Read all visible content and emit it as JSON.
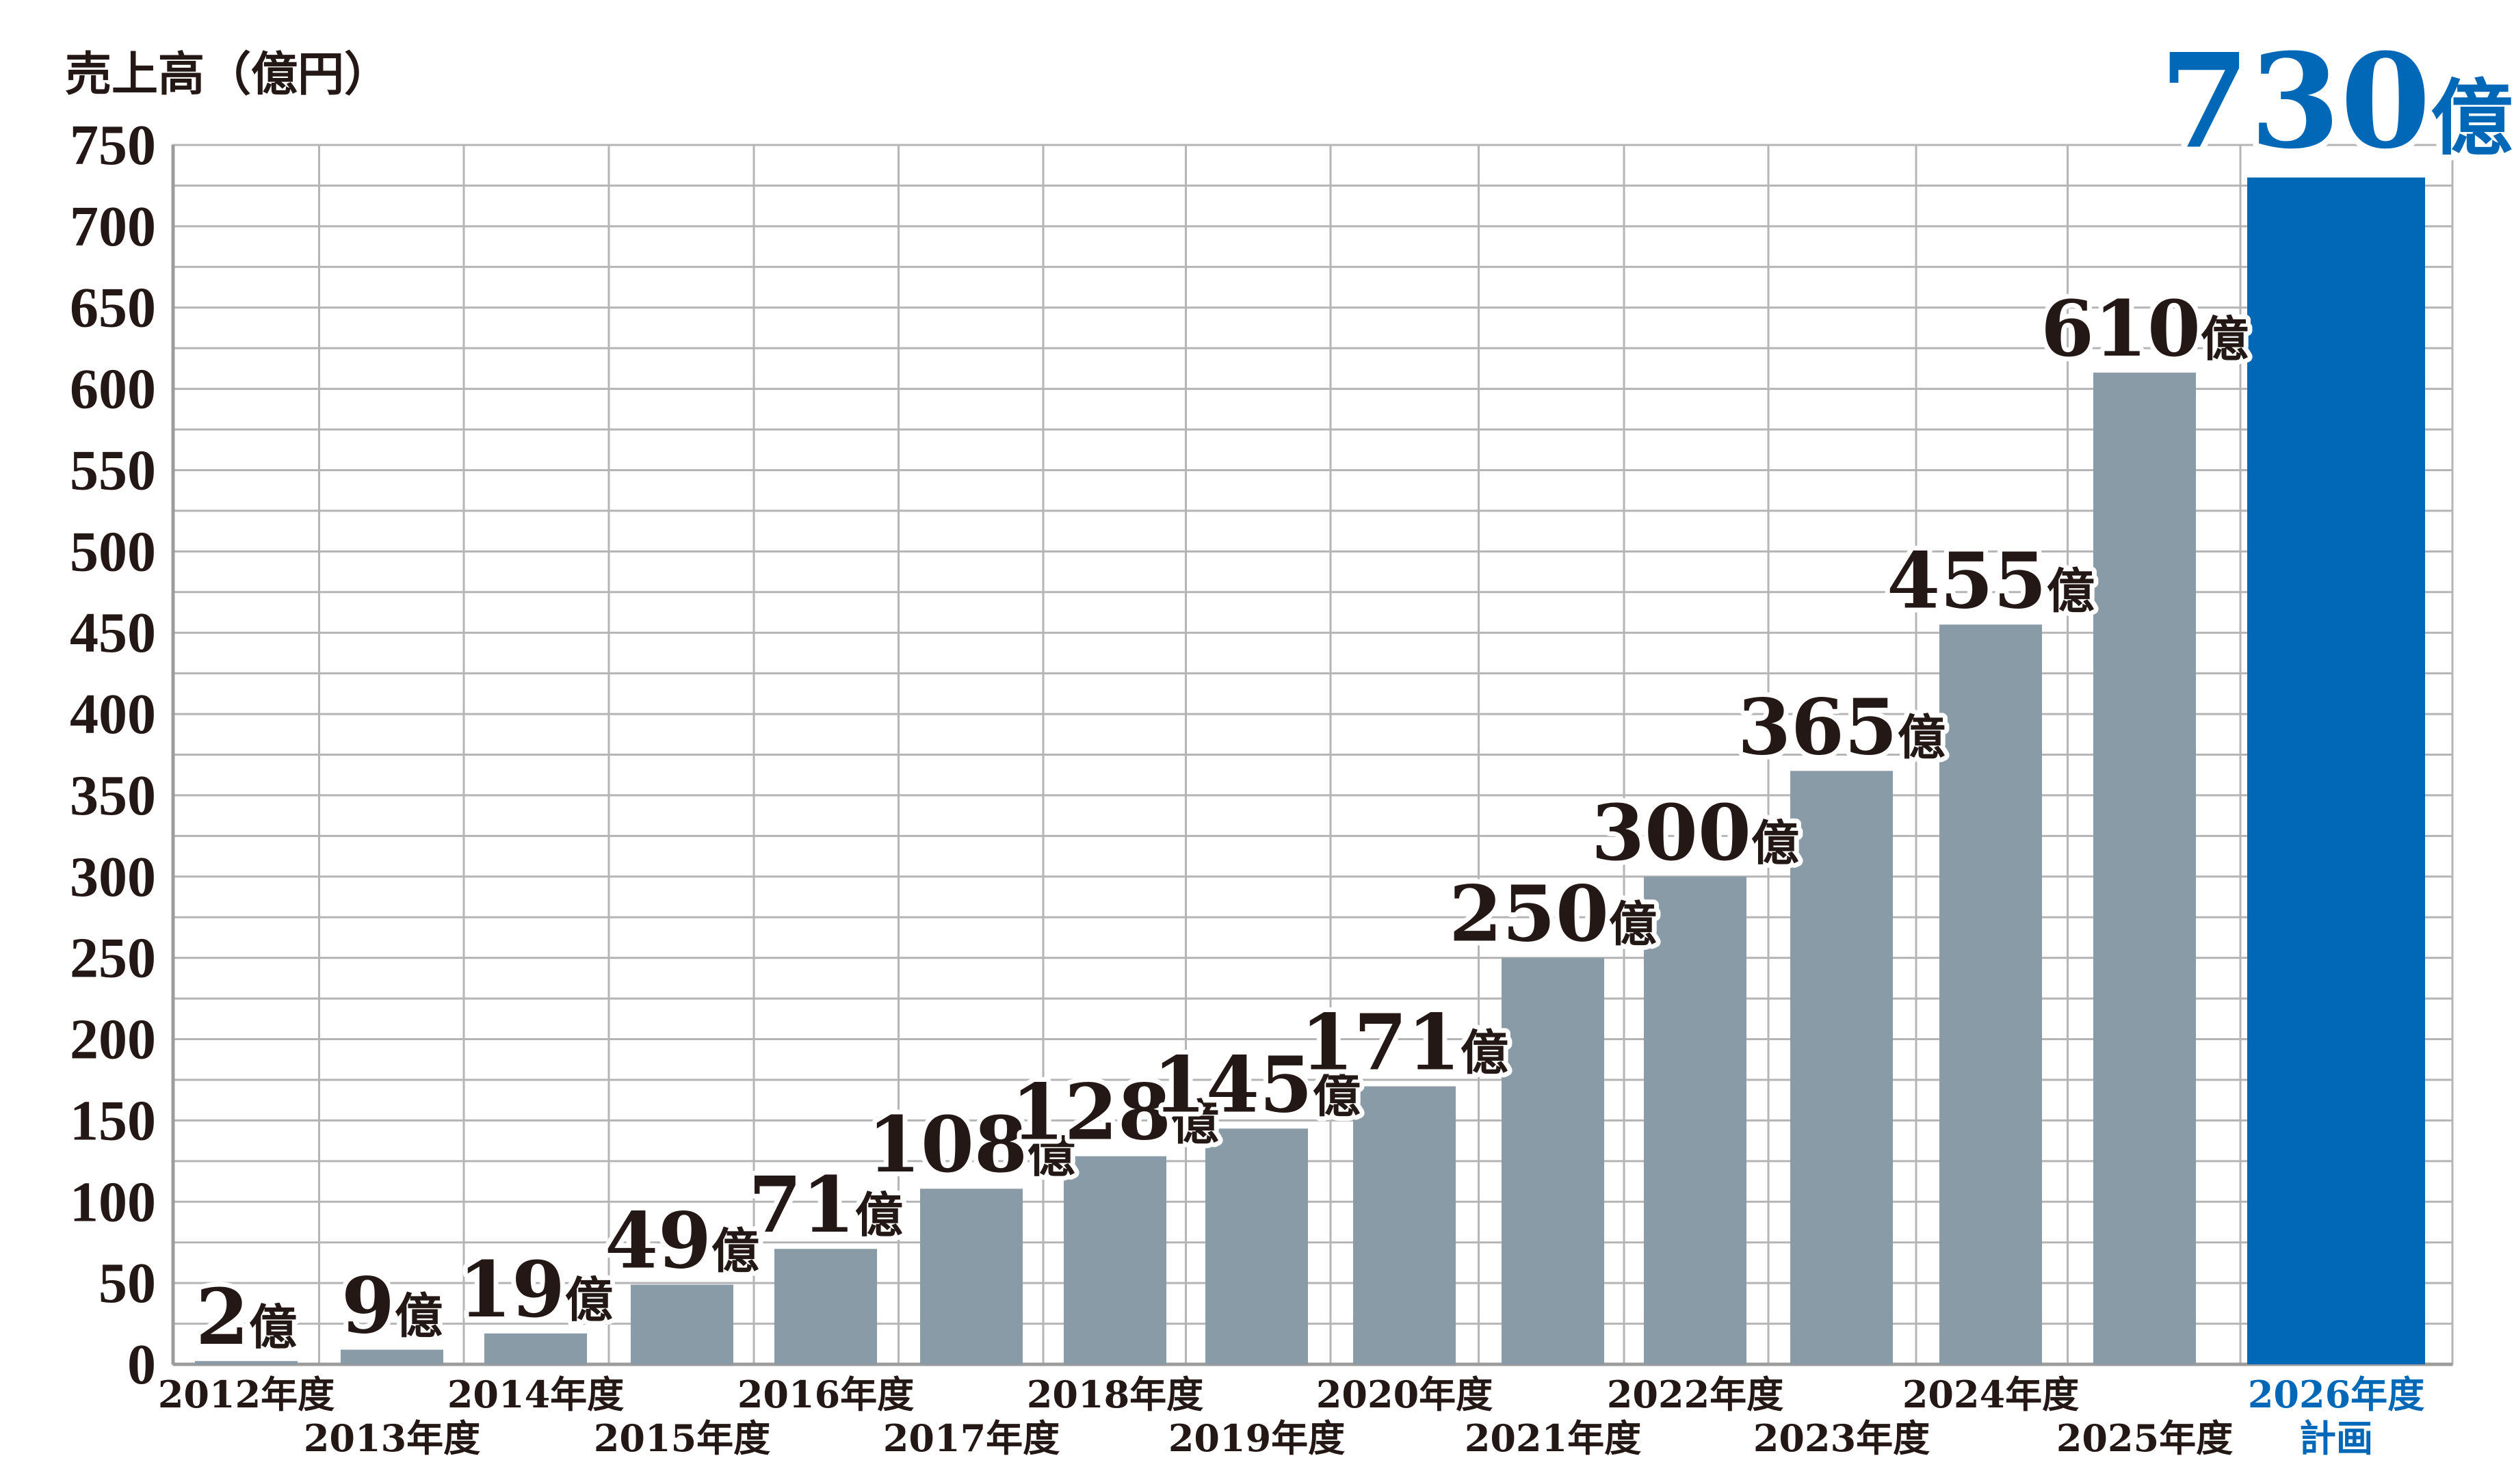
{
  "chart_data": {
    "type": "bar",
    "ylabel": "売上高（億円）",
    "ylim": [
      0,
      750
    ],
    "yticks": [
      "0",
      "50",
      "100",
      "150",
      "200",
      "250",
      "300",
      "350",
      "400",
      "450",
      "500",
      "550",
      "600",
      "650",
      "700",
      "750"
    ],
    "grid": true,
    "categories": [
      "2012年度",
      "2013年度",
      "2014年度",
      "2015年度",
      "2016年度",
      "2017年度",
      "2018年度",
      "2019年度",
      "2020年度",
      "2021年度",
      "2022年度",
      "2023年度",
      "2024年度",
      "2025年度",
      "2026年度計画"
    ],
    "category_lines": [
      [
        "2012年度"
      ],
      [
        "2013年度"
      ],
      [
        "2014年度"
      ],
      [
        "2015年度"
      ],
      [
        "2016年度"
      ],
      [
        "2017年度"
      ],
      [
        "2018年度"
      ],
      [
        "2019年度"
      ],
      [
        "2020年度"
      ],
      [
        "2021年度"
      ],
      [
        "2022年度"
      ],
      [
        "2023年度"
      ],
      [
        "2024年度"
      ],
      [
        "2025年度"
      ],
      [
        "2026年度",
        "計画"
      ]
    ],
    "values": [
      2,
      9,
      19,
      49,
      71,
      108,
      128,
      145,
      171,
      250,
      300,
      365,
      455,
      610,
      730
    ],
    "data_labels": [
      {
        "num": "2",
        "unit": "億"
      },
      {
        "num": "9",
        "unit": "億"
      },
      {
        "num": "19",
        "unit": "億"
      },
      {
        "num": "49",
        "unit": "億"
      },
      {
        "num": "71",
        "unit": "億"
      },
      {
        "num": "108",
        "unit": "億"
      },
      {
        "num": "128",
        "unit": "億"
      },
      {
        "num": "145",
        "unit": "億"
      },
      {
        "num": "171",
        "unit": "億"
      },
      {
        "num": "250",
        "unit": "億"
      },
      {
        "num": "300",
        "unit": "億"
      },
      {
        "num": "365",
        "unit": "億"
      },
      {
        "num": "455",
        "unit": "億"
      },
      {
        "num": "610",
        "unit": "億"
      },
      {
        "num": "730",
        "unit": "億"
      }
    ],
    "colors": {
      "bar": "#8a9ba8",
      "highlight": "#0068b7",
      "grid": "#b5b5b5",
      "text": "#231815"
    },
    "highlight_index": 14
  }
}
